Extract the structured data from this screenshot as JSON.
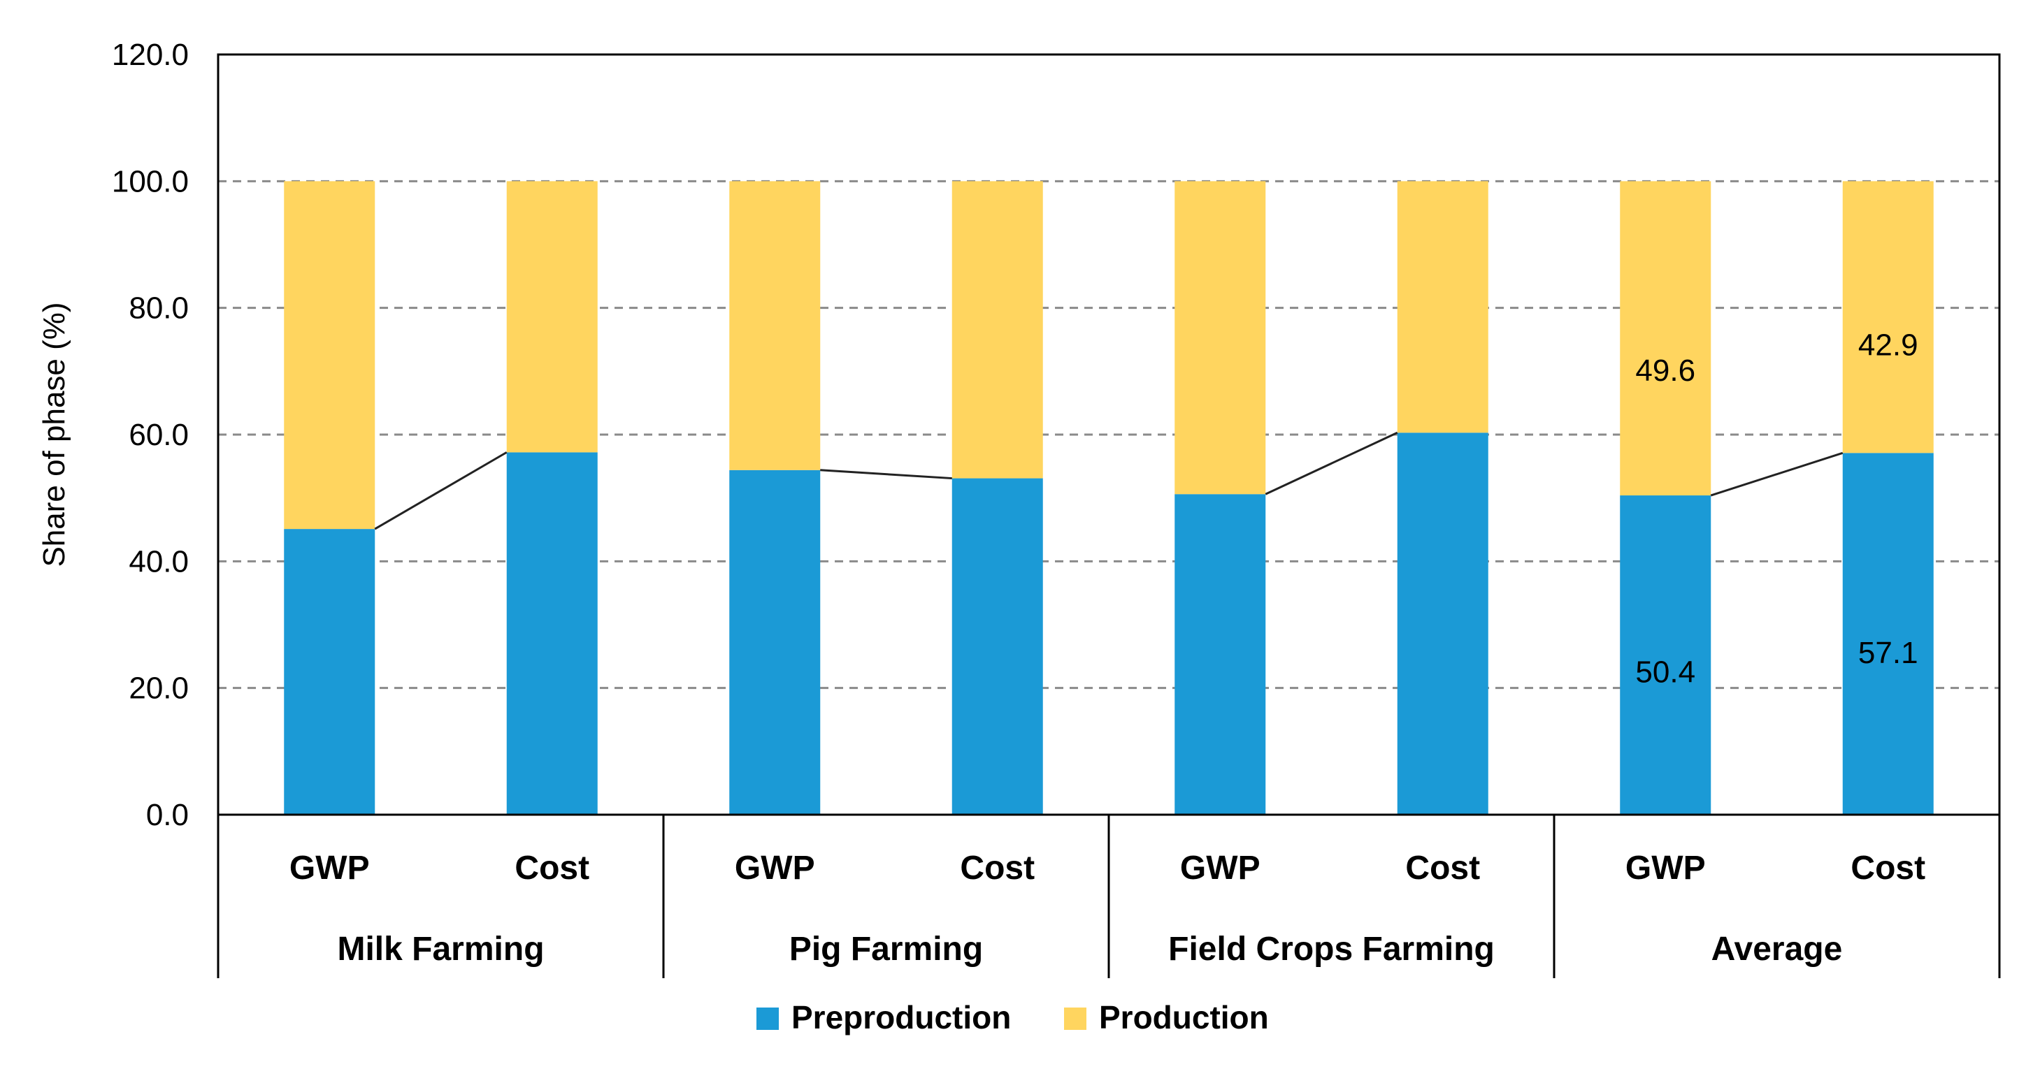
{
  "chart_data": {
    "type": "bar",
    "stacked": true,
    "title": "",
    "ylabel": "Share of phase (%)",
    "xlabel": "",
    "ylim": [
      0,
      120
    ],
    "yticks": [
      0,
      20,
      40,
      60,
      80,
      100,
      120
    ],
    "ytick_labels": [
      "0.0",
      "20.0",
      "40.0",
      "60.0",
      "80.0",
      "100.0",
      "120.0"
    ],
    "grid": true,
    "groups": [
      {
        "name": "Milk Farming",
        "categories": [
          "GWP",
          "Cost"
        ]
      },
      {
        "name": "Pig Farming",
        "categories": [
          "GWP",
          "Cost"
        ]
      },
      {
        "name": "Field Crops Farming",
        "categories": [
          "GWP",
          "Cost"
        ]
      },
      {
        "name": "Average",
        "categories": [
          "GWP",
          "Cost"
        ]
      }
    ],
    "series": [
      {
        "name": "Preproduction",
        "color": "#1b9ad6",
        "values": [
          45.1,
          57.2,
          54.4,
          53.1,
          50.6,
          60.3,
          50.4,
          57.1
        ]
      },
      {
        "name": "Production",
        "color": "#ffd55f",
        "values": [
          54.9,
          42.8,
          45.6,
          46.9,
          49.4,
          39.7,
          49.6,
          42.9
        ]
      }
    ],
    "data_labels": [
      {
        "bar_index": 6,
        "series": "Preproduction",
        "text": "50.4"
      },
      {
        "bar_index": 7,
        "series": "Preproduction",
        "text": "57.1"
      },
      {
        "bar_index": 6,
        "series": "Production",
        "text": "49.6"
      },
      {
        "bar_index": 7,
        "series": "Production",
        "text": "42.9"
      }
    ],
    "series_lines": true,
    "legend": {
      "position": "bottom-center",
      "entries": [
        "Preproduction",
        "Production"
      ]
    }
  }
}
